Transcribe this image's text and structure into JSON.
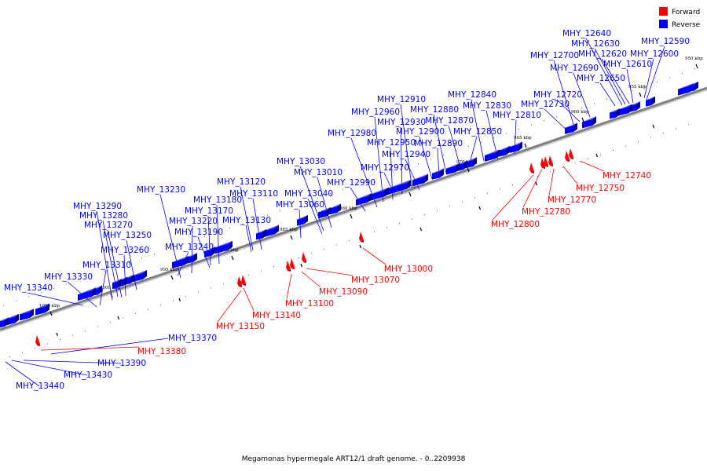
{
  "legend": {
    "forward": {
      "label": "Forward",
      "color": "#ff0000"
    },
    "reverse": {
      "label": "Reverse",
      "color": "#0000ff"
    }
  },
  "caption": "Megamonas hypermegale ART12/1 draft genome. - 0..2209938",
  "axis": {
    "color": "#808080"
  },
  "ticks": [
    "950 kbp",
    "955 kbp",
    "960 kbp",
    "965 kbp",
    "970 kbp",
    "975 kbp",
    "980 kbp",
    "985 kbp",
    "990 kbp",
    "995 kbp",
    "1000 kbp",
    "1005 kbp"
  ],
  "reverse_genes": [
    "MHY_12590",
    "MHY_12600",
    "MHY_12610",
    "MHY_12620",
    "MHY_12630",
    "MHY_12640",
    "MHY_12650",
    "MHY_12690",
    "MHY_12700",
    "MHY_12720",
    "MHY_12730",
    "MHY_12810",
    "MHY_12830",
    "MHY_12840",
    "MHY_12850",
    "MHY_12870",
    "MHY_12880",
    "MHY_12890",
    "MHY_12900",
    "MHY_12910",
    "MHY_12930",
    "MHY_12940",
    "MHY_12950",
    "MHY_12960",
    "MHY_12970",
    "MHY_12980",
    "MHY_12990",
    "MHY_13010",
    "MHY_13030",
    "MHY_13040",
    "MHY_13060",
    "MHY_13110",
    "MHY_13120",
    "MHY_13130",
    "MHY_13170",
    "MHY_13180",
    "MHY_13190",
    "MHY_13220",
    "MHY_13230",
    "MHY_13240",
    "MHY_13250",
    "MHY_13260",
    "MHY_13270",
    "MHY_13280",
    "MHY_13290",
    "MHY_13310",
    "MHY_13330",
    "MHY_13340",
    "MHY_13370",
    "MHY_13390",
    "MHY_13430",
    "MHY_13440"
  ],
  "forward_genes": [
    "MHY_12740",
    "MHY_12750",
    "MHY_12770",
    "MHY_12780",
    "MHY_12800",
    "MHY_13000",
    "MHY_13070",
    "MHY_13090",
    "MHY_13100",
    "MHY_13140",
    "MHY_13150",
    "MHY_13380"
  ]
}
